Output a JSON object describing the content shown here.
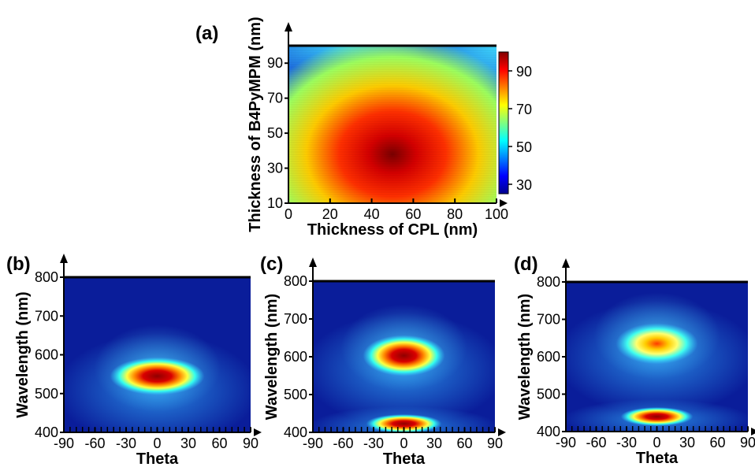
{
  "chart_data": [
    {
      "panel": "(a)",
      "type": "heatmap",
      "xlabel": "Thickness of CPL (nm)",
      "ylabel": "Thickness of B4PyMPM (nm)",
      "xlim": [
        0,
        100
      ],
      "ylim": [
        10,
        100
      ],
      "xticks": [
        0,
        20,
        40,
        60,
        80,
        100
      ],
      "yticks": [
        10,
        30,
        50,
        70,
        90
      ],
      "colorbar": {
        "ticks": [
          30,
          50,
          70,
          90
        ],
        "range": [
          25,
          100
        ]
      },
      "peak": {
        "x": 52,
        "y": 47,
        "value": 100
      },
      "colormap": "jet"
    },
    {
      "panel": "(b)",
      "type": "heatmap",
      "xlabel": "Theta",
      "ylabel": "Wavelength (nm)",
      "xlim": [
        -90,
        90
      ],
      "ylim": [
        400,
        800
      ],
      "xticks": [
        -90,
        -60,
        -30,
        0,
        30,
        60,
        90
      ],
      "yticks": [
        400,
        500,
        600,
        700,
        800
      ],
      "peaks": [
        {
          "theta": 0,
          "wavelength": 545
        }
      ],
      "colormap": "jet"
    },
    {
      "panel": "(c)",
      "type": "heatmap",
      "xlabel": "Theta",
      "ylabel": "Wavelength (nm)",
      "xlim": [
        -90,
        90
      ],
      "ylim": [
        400,
        800
      ],
      "xticks": [
        -90,
        -60,
        -30,
        0,
        30,
        60,
        90
      ],
      "yticks": [
        400,
        500,
        600,
        700,
        800
      ],
      "peaks": [
        {
          "theta": 0,
          "wavelength": 603
        },
        {
          "theta": 0,
          "wavelength": 423
        }
      ],
      "colormap": "jet"
    },
    {
      "panel": "(d)",
      "type": "heatmap",
      "xlabel": "Theta",
      "ylabel": "Wavelength (nm)",
      "xlim": [
        -90,
        90
      ],
      "ylim": [
        400,
        800
      ],
      "xticks": [
        -90,
        -60,
        -30,
        0,
        30,
        60,
        90
      ],
      "yticks": [
        400,
        500,
        600,
        700,
        800
      ],
      "xtick_labels": [
        "-90",
        "-60",
        "-30",
        "0",
        "30",
        "60",
        "90"
      ],
      "peaks": [
        {
          "theta": 0,
          "wavelength": 635
        },
        {
          "theta": 0,
          "wavelength": 440
        }
      ],
      "colormap": "jet"
    }
  ]
}
